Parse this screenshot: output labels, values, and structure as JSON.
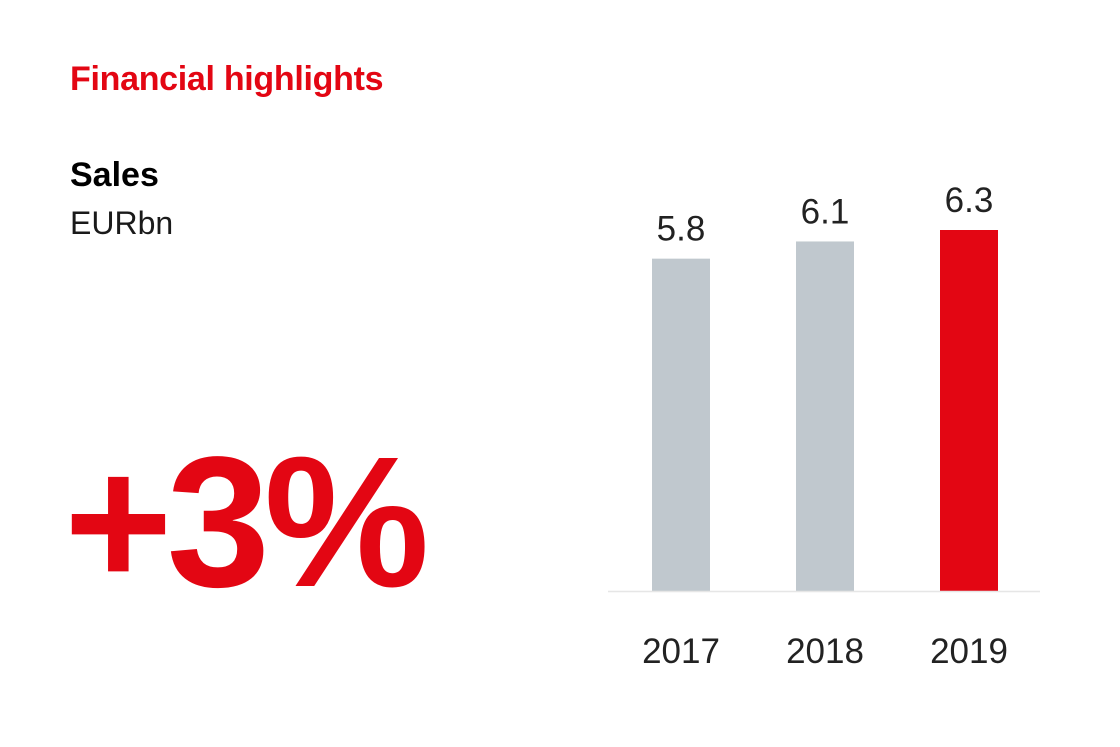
{
  "header": {
    "title": "Financial highlights"
  },
  "metric": {
    "name": "Sales",
    "unit": "EURbn",
    "change": "+3%"
  },
  "colors": {
    "accent": "#e30613",
    "bar_past": "#c0c8ce",
    "bar_current": "#e30613",
    "baseline": "#e6e6e6"
  },
  "chart_data": {
    "type": "bar",
    "title": "Sales",
    "ylabel": "EURbn",
    "categories": [
      "2017",
      "2018",
      "2019"
    ],
    "values": [
      5.8,
      6.1,
      6.3
    ],
    "value_labels": [
      "5.8",
      "6.1",
      "6.3"
    ],
    "highlight_index": 2,
    "ylim": [
      0,
      6.3
    ],
    "grid": false,
    "legend": "none"
  }
}
